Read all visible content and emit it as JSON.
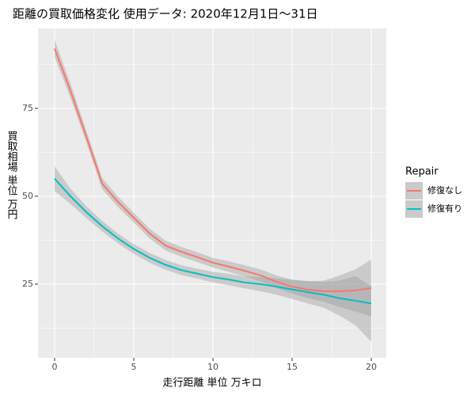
{
  "chart_data": {
    "type": "line",
    "title": "距離の買取価格変化 使用データ: 2020年12月1日～31日",
    "x_label": "走行距離 単位 万キロ",
    "y_label": "買取相場 単位 万円",
    "legend_title": "Repair",
    "x": [
      0,
      1,
      2,
      3,
      4,
      5,
      6,
      7,
      8,
      9,
      10,
      11,
      12,
      13,
      14,
      15,
      16,
      17,
      18,
      19,
      20
    ],
    "series": [
      {
        "name": "修復なし",
        "color": "#F8766D",
        "values": [
          92,
          80,
          67,
          53.6,
          48.4,
          43.9,
          39.4,
          36,
          34.2,
          32.7,
          31.1,
          30,
          28.8,
          27.5,
          25.7,
          24.3,
          23.4,
          23,
          23,
          23.2,
          23.9
        ],
        "lower": [
          89.5,
          78,
          65.3,
          52,
          46.9,
          42.5,
          38,
          34.6,
          32.8,
          31.3,
          29.7,
          28.5,
          27.2,
          25.8,
          23.9,
          22.3,
          21,
          20,
          18.5,
          17.2,
          15.8
        ],
        "upper": [
          94.5,
          82,
          68.7,
          55.2,
          49.9,
          45.3,
          40.8,
          37.4,
          35.6,
          34.1,
          32.5,
          31.5,
          30.4,
          29.2,
          27.5,
          26.3,
          25.8,
          26,
          27.5,
          29.2,
          32
        ]
      },
      {
        "name": "修復有り",
        "color": "#00BFC4",
        "values": [
          55,
          50,
          45.5,
          41.5,
          38,
          35,
          32.5,
          30.5,
          29,
          28,
          27,
          26.3,
          25.5,
          25,
          24.3,
          23.5,
          22.7,
          22,
          21,
          20.3,
          19.5
        ],
        "lower": [
          51.5,
          47.8,
          43.8,
          40,
          36.6,
          33.6,
          31.1,
          29.1,
          27.6,
          26.6,
          25.5,
          24.7,
          23.8,
          23,
          22,
          20.8,
          19.5,
          18.3,
          16,
          13.3,
          8.6
        ],
        "upper": [
          58.5,
          52.2,
          47.2,
          43,
          39.4,
          36.4,
          33.9,
          31.9,
          30.4,
          29.4,
          28.5,
          27.9,
          27.2,
          27,
          26.6,
          26.2,
          25.9,
          25.7,
          26,
          27.3,
          24.4
        ]
      }
    ],
    "xlim": [
      -1.05,
      20.95
    ],
    "xticks": [
      0,
      5,
      10,
      15,
      20
    ],
    "ylim": [
      4.05,
      97.7
    ],
    "yticks": [
      25,
      50,
      75
    ],
    "grid": true,
    "legend_position": "right"
  }
}
